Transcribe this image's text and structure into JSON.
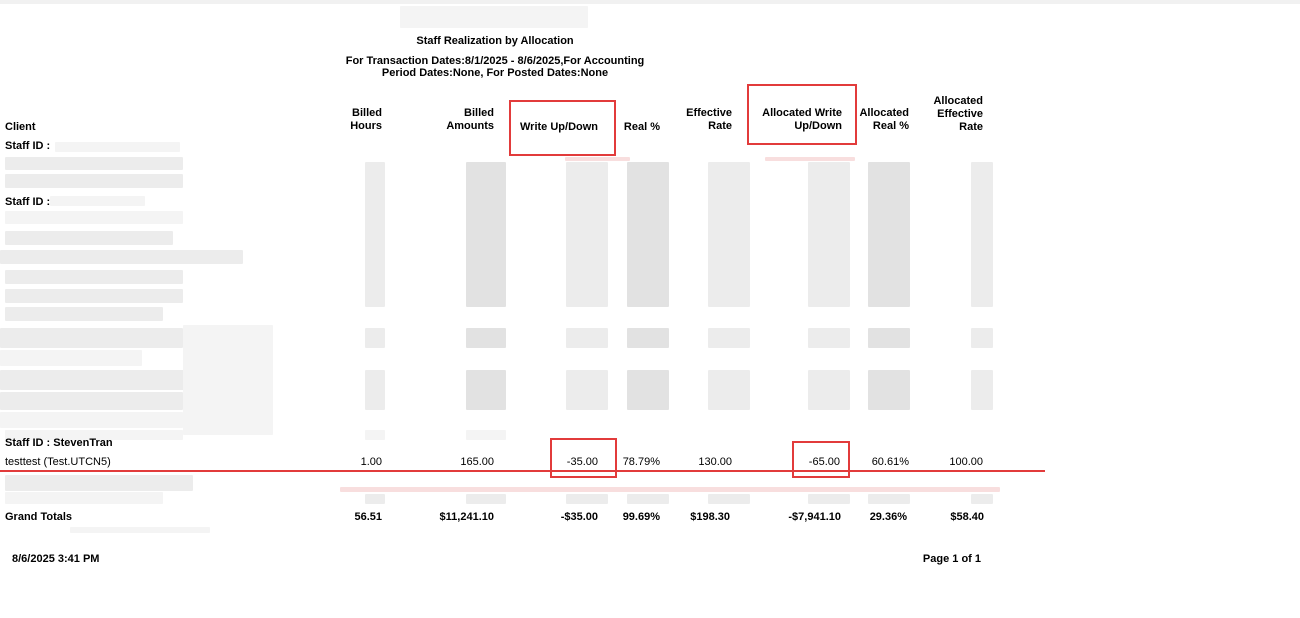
{
  "report": {
    "title": "Staff Realization by Allocation",
    "subtitle_line1": "For Transaction Dates:8/1/2025 - 8/6/2025,For Accounting",
    "subtitle_line2": "Period Dates:None, For Posted Dates:None"
  },
  "columns": {
    "client": "Client",
    "billed_hours": [
      "Billed",
      "Hours"
    ],
    "billed_amounts": [
      "Billed",
      "Amounts"
    ],
    "write_updown": "Write Up/Down",
    "real_pct": "Real %",
    "effective_rate": [
      "Effective",
      "Rate"
    ],
    "allocated_write_updown": [
      "Allocated Write",
      "Up/Down"
    ],
    "allocated_real_pct": [
      "Allocated",
      "Real %"
    ],
    "allocated_effective_rate": [
      "Allocated",
      "Effective",
      "Rate"
    ]
  },
  "staff_groups": [
    {
      "label": "Staff ID :"
    },
    {
      "label": "Staff ID :"
    },
    {
      "label": "Staff ID : StevenTran"
    }
  ],
  "visible_row": {
    "client": "testtest (Test.UTCN5)",
    "billed_hours": "1.00",
    "billed_amounts": "165.00",
    "write_updown": "-35.00",
    "real_pct": "78.79%",
    "effective_rate": "130.00",
    "allocated_write_updown": "-65.00",
    "allocated_real_pct": "60.61%",
    "allocated_effective_rate": "100.00"
  },
  "grand_totals": {
    "label": "Grand Totals",
    "billed_hours": "56.51",
    "billed_amounts": "$11,241.10",
    "write_updown": "-$35.00",
    "real_pct": "99.69%",
    "effective_rate": "$198.30",
    "allocated_write_updown": "-$7,941.10",
    "allocated_real_pct": "29.36%",
    "allocated_effective_rate": "$58.40"
  },
  "footer": {
    "timestamp": "8/6/2025 3:41 PM",
    "page": "Page 1 of 1"
  },
  "colors": {
    "highlight": "#e23b3b"
  }
}
